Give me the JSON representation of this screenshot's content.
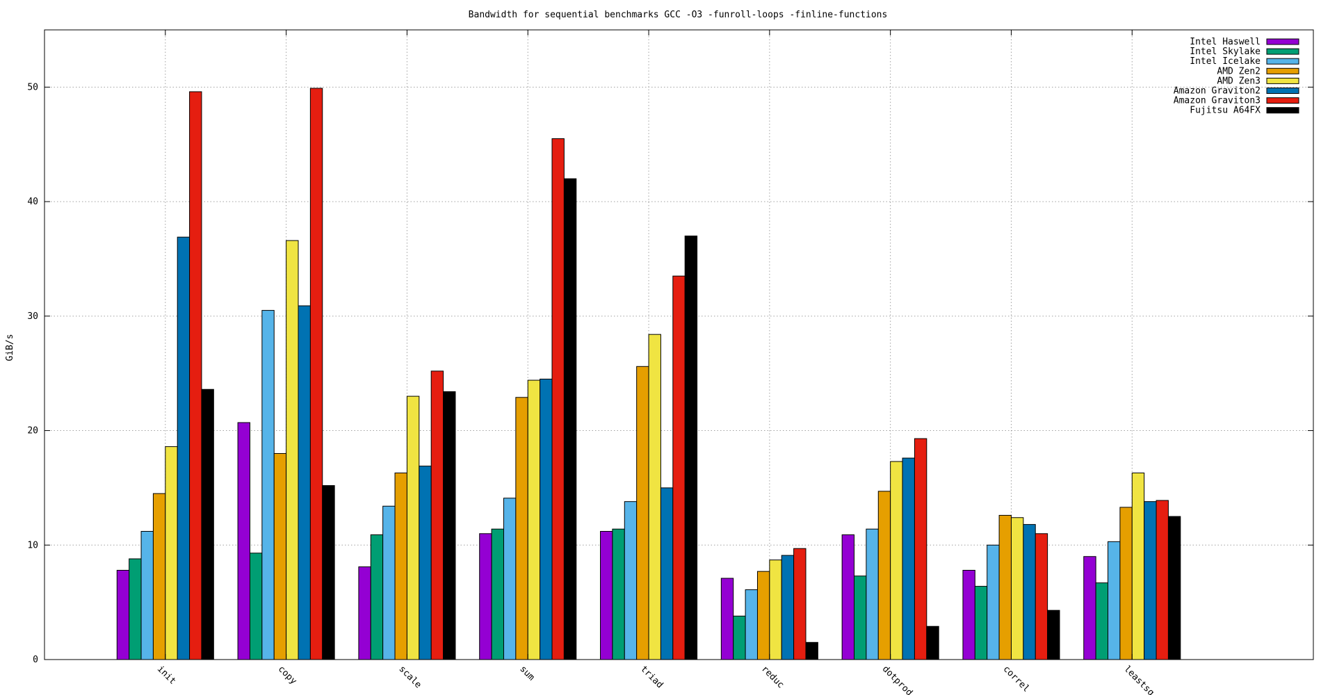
{
  "chart_data": {
    "type": "bar",
    "title": "Bandwidth for sequential benchmarks GCC -O3 -funroll-loops -finline-functions",
    "xlabel": "",
    "ylabel": "GiB/s",
    "ylim": [
      0,
      55
    ],
    "yticks": [
      0,
      10,
      20,
      30,
      40,
      50
    ],
    "grid": true,
    "legend_position": "top-right",
    "categories": [
      "init",
      "copy",
      "scale",
      "sum",
      "triad",
      "reduc",
      "dotprod",
      "correl",
      "leastsq"
    ],
    "series": [
      {
        "name": "Intel Haswell",
        "color": "#9400d3",
        "values": [
          7.8,
          20.7,
          8.1,
          11.0,
          11.2,
          7.1,
          10.9,
          7.8,
          9.0
        ]
      },
      {
        "name": "Intel Skylake",
        "color": "#009e73",
        "values": [
          8.8,
          9.3,
          10.9,
          11.4,
          11.4,
          3.8,
          7.3,
          6.4,
          6.7
        ]
      },
      {
        "name": "Intel Icelake",
        "color": "#56b4e9",
        "values": [
          11.2,
          30.5,
          13.4,
          14.1,
          13.8,
          6.1,
          11.4,
          10.0,
          10.3
        ]
      },
      {
        "name": "AMD Zen2",
        "color": "#e69f00",
        "values": [
          14.5,
          18.0,
          16.3,
          22.9,
          25.6,
          7.7,
          14.7,
          12.6,
          13.3
        ]
      },
      {
        "name": "AMD Zen3",
        "color": "#f0e442",
        "values": [
          18.6,
          36.6,
          23.0,
          24.4,
          28.4,
          8.7,
          17.3,
          12.4,
          16.3
        ]
      },
      {
        "name": "Amazon Graviton2",
        "color": "#0072b2",
        "values": [
          36.9,
          30.9,
          16.9,
          24.5,
          15.0,
          9.1,
          17.6,
          11.8,
          13.8
        ]
      },
      {
        "name": "Amazon Graviton3",
        "color": "#e51e10",
        "values": [
          49.6,
          49.9,
          25.2,
          45.5,
          33.5,
          9.7,
          19.3,
          11.0,
          13.9
        ]
      },
      {
        "name": "Fujitsu A64FX",
        "color": "#000000",
        "values": [
          23.6,
          15.2,
          23.4,
          42.0,
          37.0,
          1.5,
          2.9,
          4.3,
          12.5
        ]
      }
    ]
  }
}
